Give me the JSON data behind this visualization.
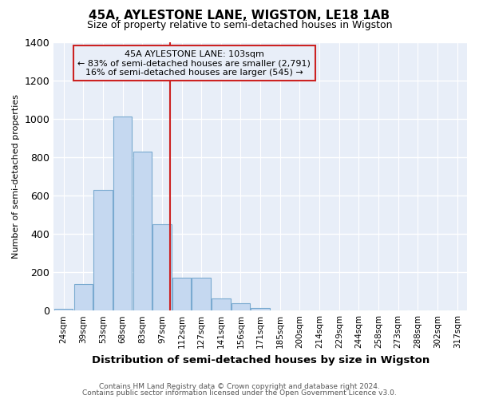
{
  "title": "45A, AYLESTONE LANE, WIGSTON, LE18 1AB",
  "subtitle": "Size of property relative to semi-detached houses in Wigston",
  "xlabel": "Distribution of semi-detached houses by size in Wigston",
  "ylabel": "Number of semi-detached properties",
  "footnote1": "Contains HM Land Registry data © Crown copyright and database right 2024.",
  "footnote2": "Contains public sector information licensed under the Open Government Licence v3.0.",
  "bin_labels": [
    "24sqm",
    "39sqm",
    "53sqm",
    "68sqm",
    "83sqm",
    "97sqm",
    "112sqm",
    "127sqm",
    "141sqm",
    "156sqm",
    "171sqm",
    "185sqm",
    "200sqm",
    "214sqm",
    "229sqm",
    "244sqm",
    "258sqm",
    "273sqm",
    "288sqm",
    "302sqm",
    "317sqm"
  ],
  "bar_heights": [
    10,
    140,
    630,
    1010,
    830,
    450,
    170,
    170,
    65,
    40,
    15,
    0,
    0,
    0,
    0,
    0,
    0,
    0,
    0,
    0,
    0
  ],
  "property_label": "45A AYLESTONE LANE: 103sqm",
  "smaller_pct": 83,
  "smaller_count": 2791,
  "larger_pct": 16,
  "larger_count": 545,
  "bar_color": "#c5d8f0",
  "bar_edge_color": "#7aaad0",
  "vline_color": "#cc2222",
  "annotation_box_edge": "#cc2222",
  "ylim": [
    0,
    1400
  ],
  "yticks": [
    0,
    200,
    400,
    600,
    800,
    1000,
    1200,
    1400
  ],
  "background_color": "#ffffff",
  "plot_bg_color": "#e8eef8",
  "grid_color": "#ffffff",
  "vline_x_index": 5.4
}
